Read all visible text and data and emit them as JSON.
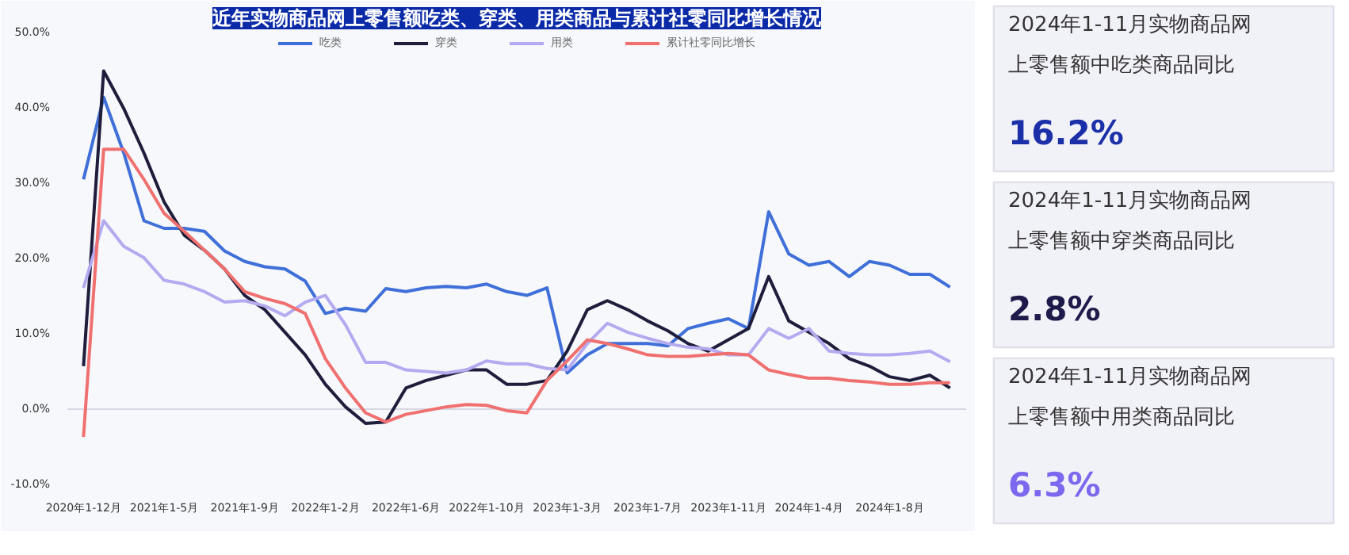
{
  "chart_data": [
    {
      "type": "line",
      "title": "近年实物商品网上零售额吃类、穿类、用类商品与累计社零同比增长情况",
      "categories": [
        "2020年1-12月",
        null,
        null,
        null,
        "2021年1-5月",
        null,
        null,
        null,
        "2021年1-9月",
        null,
        null,
        null,
        "2022年1-2月",
        null,
        null,
        null,
        "2022年1-6月",
        null,
        null,
        null,
        "2022年1-10月",
        null,
        null,
        null,
        "2023年1-3月",
        null,
        null,
        null,
        "2023年1-7月",
        null,
        null,
        null,
        "2023年1-11月",
        null,
        null,
        null,
        "2024年1-4月",
        null,
        null,
        null,
        "2024年1-8月",
        null,
        null,
        null
      ],
      "series": [
        {
          "name": "吃类",
          "color": "#3f6fd8",
          "values": [
            30.5,
            41.4,
            34,
            25,
            24,
            24,
            23.6,
            21,
            19.6,
            18.9,
            18.6,
            17,
            12.7,
            13.4,
            13,
            16,
            15.6,
            16.1,
            16.3,
            16.1,
            16.6,
            15.6,
            15.1,
            16.1,
            4.8,
            7.2,
            8.7,
            8.7,
            8.7,
            8.4,
            10.7,
            11.4,
            12,
            10.7,
            26.2,
            20.6,
            19.1,
            19.6,
            17.6,
            19.6,
            19.1,
            17.9,
            17.9,
            16.2
          ]
        },
        {
          "name": "穿类",
          "color": "#1e1e3c",
          "values": [
            5.7,
            44.9,
            39.9,
            34,
            27.5,
            23.1,
            21.1,
            18.6,
            15.1,
            13.2,
            10.2,
            7.2,
            3.3,
            0.3,
            -1.9,
            -1.7,
            2.8,
            3.8,
            4.5,
            5.2,
            5.2,
            3.3,
            3.3,
            3.8,
            7.7,
            13.2,
            14.4,
            13.2,
            11.7,
            10.4,
            8.7,
            7.7,
            9.2,
            10.7,
            17.6,
            11.7,
            10.2,
            8.7,
            6.7,
            5.7,
            4.3,
            3.8,
            4.5,
            2.8
          ]
        },
        {
          "name": "用类",
          "color": "#b4aaf0",
          "values": [
            16.1,
            25,
            21.6,
            20.1,
            17.1,
            16.6,
            15.6,
            14.2,
            14.4,
            13.7,
            12.4,
            14.2,
            15.1,
            11.2,
            6.2,
            6.2,
            5.2,
            5,
            4.8,
            5.2,
            6.4,
            6,
            6,
            5.4,
            5.2,
            8.7,
            11.4,
            10.2,
            9.4,
            8.7,
            8.2,
            8,
            7.2,
            7.2,
            10.7,
            9.4,
            10.7,
            7.7,
            7.4,
            7.2,
            7.2,
            7.4,
            7.7,
            6.3
          ]
        },
        {
          "name": "累计社零同比增长",
          "color": "#f07070",
          "values": [
            -3.7,
            34.5,
            34.5,
            30.5,
            26,
            23.6,
            21.1,
            18.6,
            15.6,
            14.7,
            14,
            12.7,
            6.7,
            2.8,
            -0.5,
            -1.7,
            -0.7,
            -0.2,
            0.3,
            0.6,
            0.5,
            -0.2,
            -0.5,
            3.8,
            6.4,
            9.2,
            8.7,
            8,
            7.2,
            7,
            7,
            7.2,
            7.4,
            7.2,
            5.2,
            4.6,
            4.1,
            4.1,
            3.8,
            3.6,
            3.3,
            3.3,
            3.5,
            3.5
          ]
        }
      ],
      "ylim": [
        -10,
        50
      ],
      "yticks": [
        {
          "value": -10,
          "label": "-10.0%"
        },
        {
          "value": 0,
          "label": "0.0%"
        },
        {
          "value": 10,
          "label": "10.0%"
        },
        {
          "value": 20,
          "label": "20.0%"
        },
        {
          "value": 30,
          "label": "30.0%"
        },
        {
          "value": 40,
          "label": "40.0%"
        },
        {
          "value": 50,
          "label": "50.0%"
        }
      ],
      "ref_lines": [
        {
          "axis": "y",
          "value": 0,
          "color": "#d8d8e4"
        }
      ],
      "grid": false,
      "legend": "top",
      "marker": "none",
      "line_style": "solid"
    },
    {
      "type": "other",
      "title": "2024年1-11月实物商品网",
      "subtitle": "上零售额中吃类商品同比",
      "annotations": [
        "16.2%"
      ],
      "colors": [
        "#1a2fa8"
      ]
    },
    {
      "type": "other",
      "title": "2024年1-11月实物商品网",
      "subtitle": "上零售额中穿类商品同比",
      "annotations": [
        "2.8%"
      ],
      "colors": [
        "#1e1b4b"
      ]
    },
    {
      "type": "other",
      "title": "2024年1-11月实物商品网",
      "subtitle": "上零售额中用类商品同比",
      "annotations": [
        "6.3%"
      ],
      "colors": [
        "#7b68ee"
      ]
    }
  ]
}
